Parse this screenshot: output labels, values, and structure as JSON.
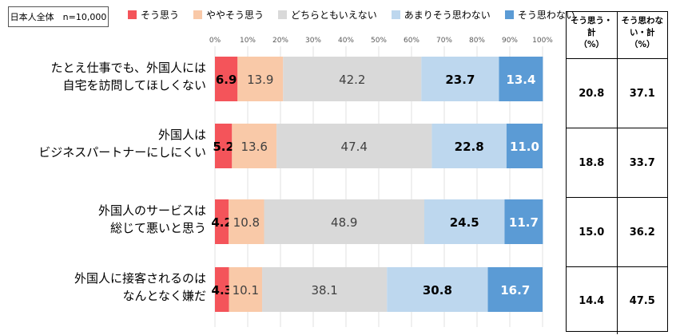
{
  "sample_label": "日本人全体　n=10,000",
  "legend": [
    {
      "label": "そう思う",
      "color": "#F4545A"
    },
    {
      "label": "ややそう思う",
      "color": "#F9C9A8"
    },
    {
      "label": "どちらともいえない",
      "color": "#D9D9D9"
    },
    {
      "label": "あまりそう思わない",
      "color": "#BDD7EE"
    },
    {
      "label": "そう思わない",
      "color": "#5B9BD5"
    }
  ],
  "side_table": {
    "headers": [
      "そう思う・計\n（%）",
      "そう思わな\nい・計\n（%）"
    ],
    "rows": [
      [
        "20.8",
        "37.1"
      ],
      [
        "18.8",
        "33.7"
      ],
      [
        "15.0",
        "36.2"
      ],
      [
        "14.4",
        "47.5"
      ]
    ]
  },
  "chart_data": {
    "type": "bar",
    "orientation": "horizontal",
    "stacked": true,
    "xlim": [
      0,
      100
    ],
    "x_ticks": [
      "0%",
      "10%",
      "20%",
      "30%",
      "40%",
      "50%",
      "60%",
      "70%",
      "80%",
      "90%",
      "100%"
    ],
    "categories": [
      [
        "たとえ仕事でも、外国人には",
        "自宅を訪問してほしくない"
      ],
      [
        "外国人は",
        "ビジネスパートナーにしにくい"
      ],
      [
        "外国人のサービスは",
        "総じて悪いと思う"
      ],
      [
        "外国人に接客されるのは",
        "なんとなく嫌だ"
      ]
    ],
    "series": [
      {
        "name": "そう思う",
        "color": "#F4545A",
        "values": [
          6.9,
          5.2,
          4.2,
          4.3
        ]
      },
      {
        "name": "ややそう思う",
        "color": "#F9C9A8",
        "values": [
          13.9,
          13.6,
          10.8,
          10.1
        ]
      },
      {
        "name": "どちらともいえない",
        "color": "#D9D9D9",
        "values": [
          42.2,
          47.4,
          48.9,
          38.1
        ]
      },
      {
        "name": "あまりそう思わない",
        "color": "#BDD7EE",
        "values": [
          23.7,
          22.8,
          24.5,
          30.8
        ]
      },
      {
        "name": "そう思わない",
        "color": "#5B9BD5",
        "values": [
          13.4,
          11.0,
          11.7,
          16.7
        ]
      }
    ],
    "label_style": [
      {
        "bold": true,
        "color": "#000"
      },
      {
        "bold": false,
        "color": "#404040"
      },
      {
        "bold": false,
        "color": "#404040"
      },
      {
        "bold": true,
        "color": "#000"
      },
      {
        "bold": true,
        "color": "#fff"
      }
    ]
  }
}
